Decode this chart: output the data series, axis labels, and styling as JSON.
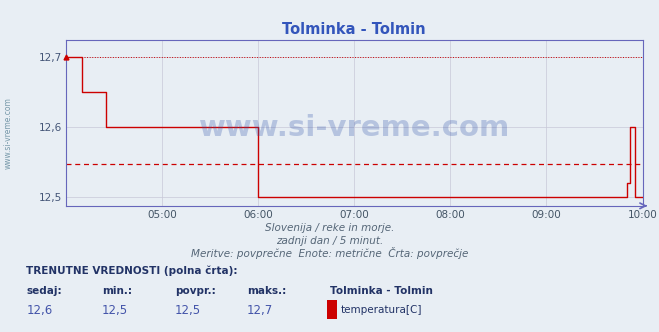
{
  "title": "Tolminka - Tolmin",
  "bg_color": "#e8eef4",
  "plot_bg_color": "#e8eef4",
  "line_color": "#cc0000",
  "avg_line_color": "#cc0000",
  "axis_color": "#6666bb",
  "grid_color": "#c8c8d8",
  "ylim": [
    12.488,
    12.724
  ],
  "yticks": [
    12.5,
    12.6,
    12.7
  ],
  "xlim_minutes": [
    0,
    360
  ],
  "xtick_positions": [
    60,
    120,
    180,
    240,
    300,
    360
  ],
  "xtick_labels": [
    "05:00",
    "06:00",
    "07:00",
    "08:00",
    "09:00",
    "10:00"
  ],
  "avg_value": 12.547,
  "watermark": "www.si-vreme.com",
  "subtitle1": "Slovenija / reke in morje.",
  "subtitle2": "zadnji dan / 5 minut.",
  "subtitle3": "Meritve: povprečne  Enote: metrične  Črta: povprečje",
  "footer_bold": "TRENUTNE VREDNOSTI (polna črta):",
  "footer_labels": [
    "sedaj:",
    "min.:",
    "povpr.:",
    "maks.:"
  ],
  "footer_values": [
    "12,6",
    "12,5",
    "12,5",
    "12,7"
  ],
  "legend_label": "temperatura[C]",
  "legend_station": "Tolminka - Tolmin",
  "watermark_color": "#3355aa",
  "sidebar_text": "www.si-vreme.com",
  "title_color": "#3355bb",
  "subtitle_color": "#556677",
  "footer_color": "#223366",
  "value_color": "#4455aa"
}
